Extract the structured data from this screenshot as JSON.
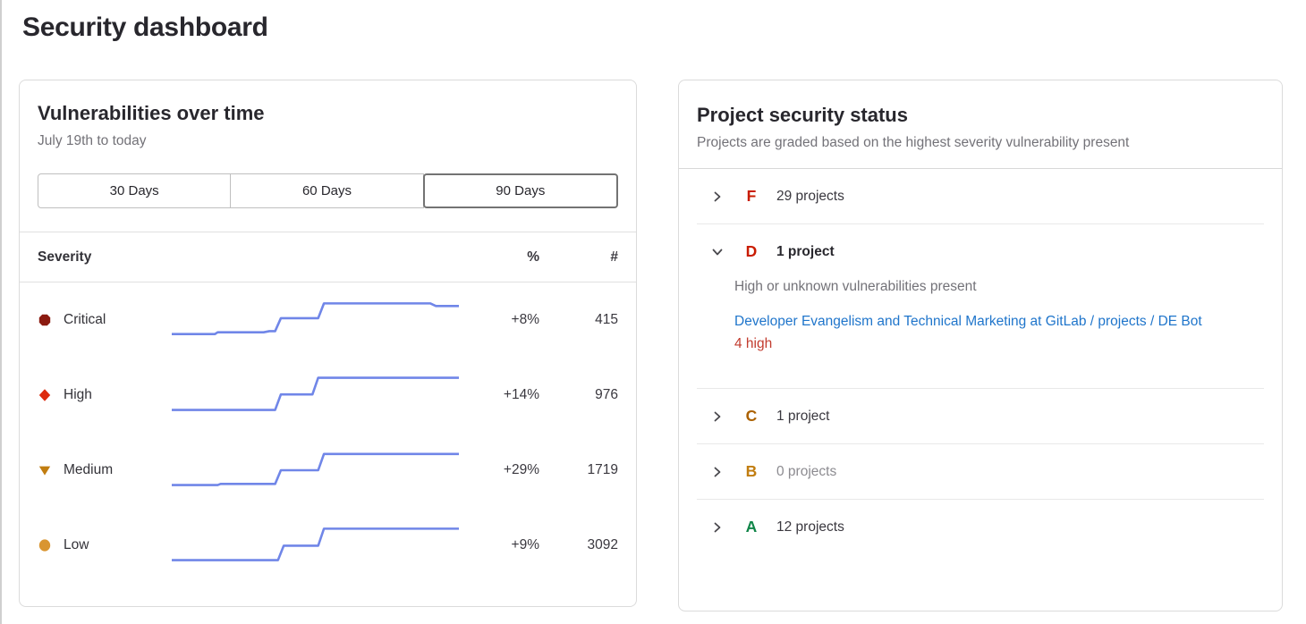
{
  "page": {
    "title": "Security dashboard"
  },
  "colors": {
    "sparkline": "#7086e8",
    "link_blue": "#1f75cb",
    "badge_red": "#c23b2e",
    "card_border": "#dbdbdb"
  },
  "vuln_card": {
    "title": "Vulnerabilities over time",
    "subtitle": "July 19th to today",
    "day_buttons": [
      {
        "label": "30 Days",
        "selected": false
      },
      {
        "label": "60 Days",
        "selected": false
      },
      {
        "label": "90 Days",
        "selected": true
      }
    ],
    "table": {
      "headers": {
        "severity": "Severity",
        "percent": "%",
        "count": "#"
      },
      "rows": [
        {
          "severity": "Critical",
          "icon": "severity-critical-icon",
          "icon_shape": "octagon",
          "icon_color": "#8b1a10",
          "percent": "+8%",
          "count": "415"
        },
        {
          "severity": "High",
          "icon": "severity-high-icon",
          "icon_shape": "diamond",
          "icon_color": "#dd2b0e",
          "percent": "+14%",
          "count": "976"
        },
        {
          "severity": "Medium",
          "icon": "severity-medium-icon",
          "icon_shape": "triangle",
          "icon_color": "#c17d10",
          "percent": "+29%",
          "count": "1719"
        },
        {
          "severity": "Low",
          "icon": "severity-low-icon",
          "icon_shape": "circle",
          "icon_color": "#d99530",
          "percent": "+9%",
          "count": "3092"
        }
      ]
    }
  },
  "status_card": {
    "title": "Project security status",
    "subtitle": "Projects are graded based on the highest severity vulnerability present",
    "grades": [
      {
        "letter": "F",
        "letter_color": "#c91c00",
        "count_label": "29 projects",
        "expanded": false,
        "muted": false
      },
      {
        "letter": "D",
        "letter_color": "#c91c00",
        "count_label": "1 project",
        "expanded": true,
        "muted": false,
        "description": "High or unknown vulnerabilities present",
        "project_link": "Developer Evangelism and Technical Marketing at GitLab / projects / DE Bot",
        "badge": "4 high"
      },
      {
        "letter": "C",
        "letter_color": "#ab6100",
        "count_label": "1 project",
        "expanded": false,
        "muted": false
      },
      {
        "letter": "B",
        "letter_color": "#c17d10",
        "count_label": "0 projects",
        "expanded": false,
        "muted": true
      },
      {
        "letter": "A",
        "letter_color": "#108548",
        "count_label": "12 projects",
        "expanded": false,
        "muted": false
      }
    ]
  },
  "chart_data": {
    "type": "line",
    "subtype": "step-sparklines",
    "title": "Vulnerabilities over time",
    "x_range": "July 19th to today (90 days)",
    "grid": false,
    "legend_position": "none",
    "note": "points are [x 0-100, value 0-100 normalized]; trend label and latest count shown in table columns",
    "series": [
      {
        "name": "Critical",
        "trend": "+8%",
        "latest_count": 415,
        "points": [
          [
            0,
            12
          ],
          [
            15,
            12
          ],
          [
            16,
            17
          ],
          [
            32,
            17
          ],
          [
            34,
            20
          ],
          [
            36,
            20
          ],
          [
            38,
            55
          ],
          [
            51,
            55
          ],
          [
            53,
            95
          ],
          [
            90,
            95
          ],
          [
            92,
            88
          ],
          [
            100,
            88
          ]
        ]
      },
      {
        "name": "High",
        "trend": "+14%",
        "latest_count": 976,
        "points": [
          [
            0,
            10
          ],
          [
            36,
            10
          ],
          [
            38,
            52
          ],
          [
            49,
            52
          ],
          [
            51,
            97
          ],
          [
            100,
            97
          ]
        ]
      },
      {
        "name": "Medium",
        "trend": "+29%",
        "latest_count": 1719,
        "points": [
          [
            0,
            10
          ],
          [
            16,
            10
          ],
          [
            17,
            13
          ],
          [
            36,
            13
          ],
          [
            38,
            50
          ],
          [
            51,
            50
          ],
          [
            53,
            94
          ],
          [
            100,
            94
          ]
        ]
      },
      {
        "name": "Low",
        "trend": "+9%",
        "latest_count": 3092,
        "points": [
          [
            0,
            10
          ],
          [
            37,
            10
          ],
          [
            39,
            49
          ],
          [
            51,
            49
          ],
          [
            53,
            95
          ],
          [
            100,
            95
          ]
        ]
      }
    ]
  }
}
